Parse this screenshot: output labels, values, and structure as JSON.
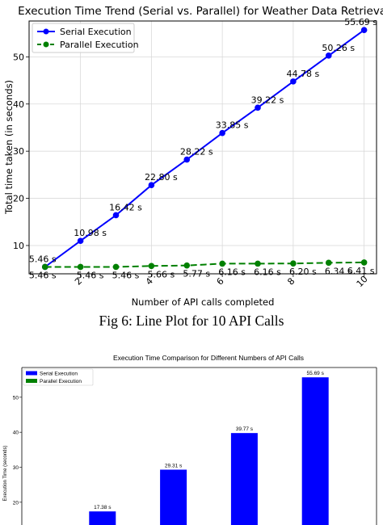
{
  "caption": "Fig 6: Line Plot for 10 API Calls",
  "chart_data": [
    {
      "type": "line",
      "title": "Execution Time Trend (Serial vs. Parallel) for Weather Data Retrieval",
      "xlabel": "Number of API calls completed",
      "ylabel": "Total time taken (in seconds)",
      "xlim": [
        0.55,
        10.35
      ],
      "ylim": [
        4.0,
        57.6
      ],
      "xticks": [
        2,
        4,
        6,
        8,
        10
      ],
      "yticks": [
        10,
        20,
        30,
        40,
        50
      ],
      "grid": true,
      "legend": "top-left",
      "x": [
        1,
        2,
        3,
        4,
        5,
        6,
        7,
        8,
        9,
        10
      ],
      "series": [
        {
          "name": "Serial Execution",
          "color": "#0000ff",
          "style": "solid",
          "values": [
            5.46,
            10.98,
            16.42,
            22.8,
            28.22,
            33.85,
            39.22,
            44.78,
            50.26,
            55.69
          ],
          "labels": [
            "5.46 s",
            "10.98 s",
            "16.42 s",
            "22.80 s",
            "28.22 s",
            "33.85 s",
            "39.22 s",
            "44.78 s",
            "50.26 s",
            "55.69 s"
          ]
        },
        {
          "name": "Parallel Execution",
          "color": "#008000",
          "style": "dashed",
          "values": [
            5.46,
            5.46,
            5.46,
            5.66,
            5.77,
            6.16,
            6.16,
            6.2,
            6.34,
            6.41
          ],
          "labels": [
            "5.46 s",
            "5.46 s",
            "5.46 s",
            "5.66 s",
            "5.77 s",
            "6.16 s",
            "6.16 s",
            "6.20 s",
            "6.34 s",
            "6.41 s"
          ]
        }
      ]
    },
    {
      "type": "bar",
      "title": "Execution Time Comparison for Different Numbers of API Calls",
      "xlabel": "",
      "ylabel": "Execution Time (seconds)",
      "ylim": [
        13.5,
        58.5
      ],
      "yticks": [
        20,
        30,
        40,
        50
      ],
      "grid": false,
      "legend": "top-left",
      "legend_entries": [
        {
          "name": "Serial Execution",
          "color": "#0000ff"
        },
        {
          "name": "Parallel Execution",
          "color": "#008000"
        }
      ],
      "series": [
        {
          "name": "Serial Execution",
          "color": "#0000ff",
          "values": [
            17.38,
            29.31,
            39.77,
            55.69
          ],
          "labels": [
            "17.38 s",
            "29.31 s",
            "39.77 s",
            "55.69 s"
          ]
        }
      ]
    }
  ]
}
